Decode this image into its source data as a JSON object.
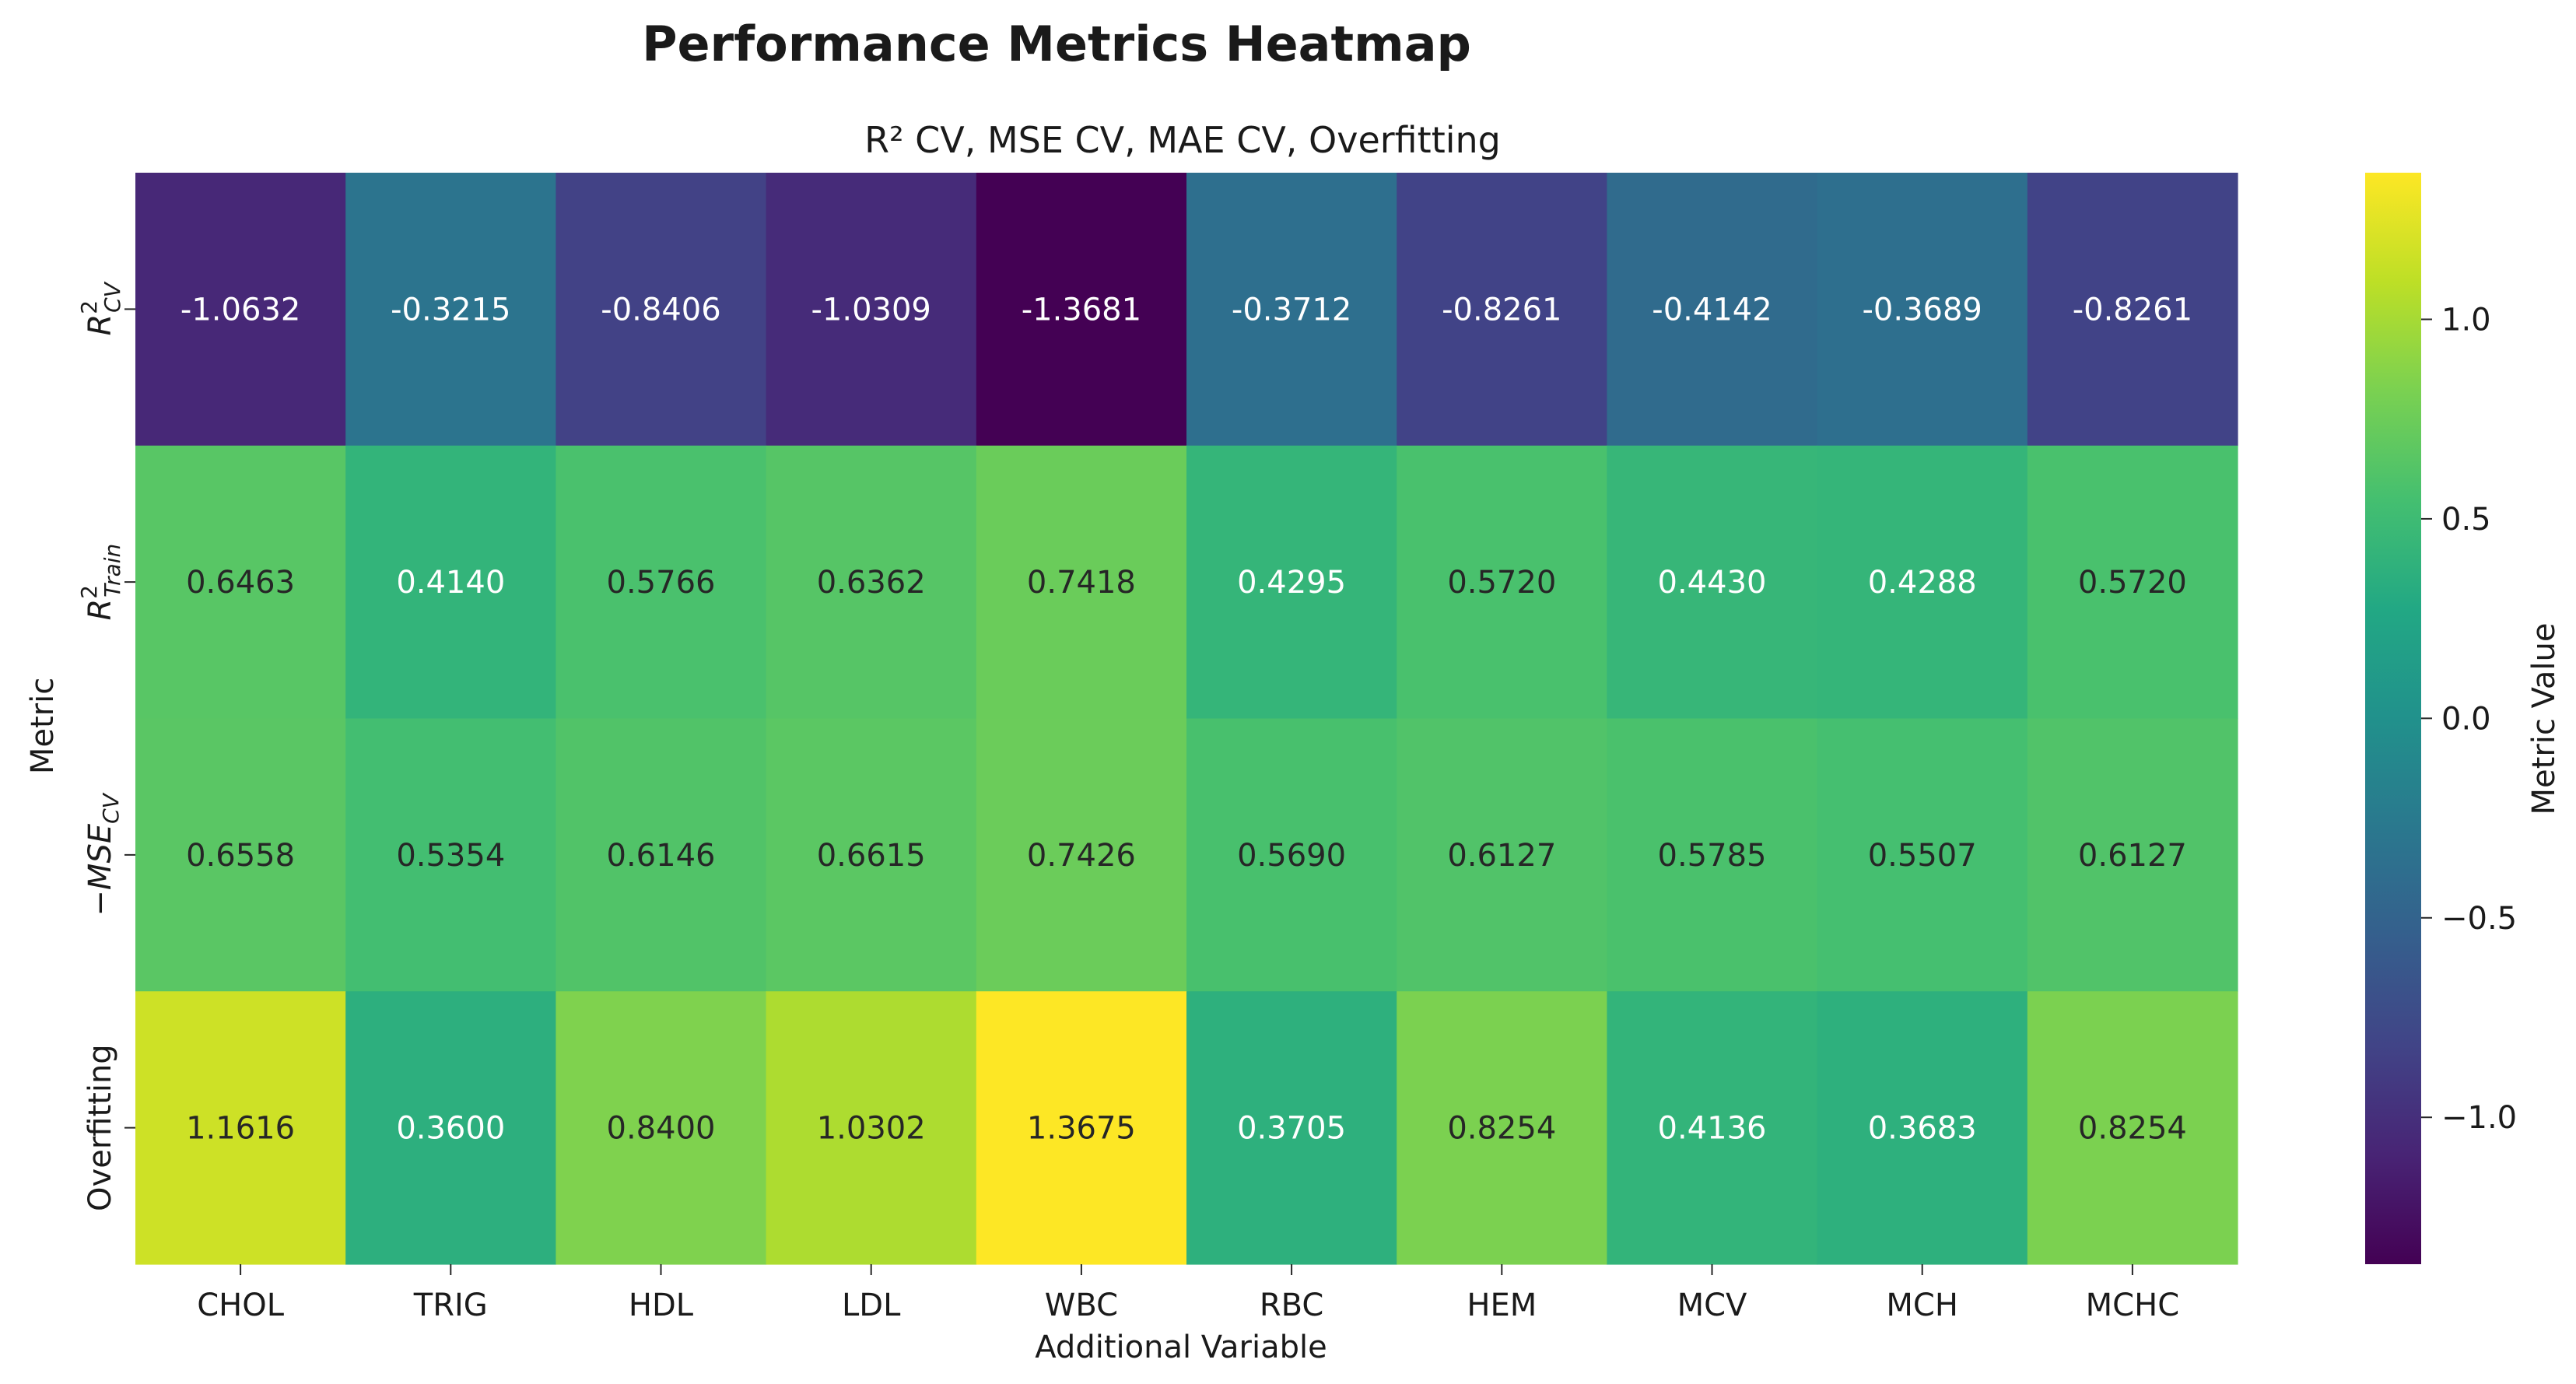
{
  "chart_data": {
    "type": "heatmap",
    "title": "Performance Metrics Heatmap",
    "subtitle": "R² CV, MSE CV, MAE CV, Overfitting",
    "xlabel": "Additional Variable",
    "ylabel": "Metric",
    "x_categories": [
      "CHOL",
      "TRIG",
      "HDL",
      "LDL",
      "WBC",
      "RBC",
      "HEM",
      "MCV",
      "MCH",
      "MCHC"
    ],
    "y_categories": [
      {
        "base": "R",
        "sup": "2",
        "sub": "CV"
      },
      {
        "base": "R",
        "sup": "2",
        "sub": "Train"
      },
      {
        "base": "−MSE",
        "sup": "",
        "sub": "CV"
      },
      {
        "base": "Overfitting",
        "sup": "",
        "sub": ""
      }
    ],
    "values": [
      [
        -1.0632,
        -0.3215,
        -0.8406,
        -1.0309,
        -1.3681,
        -0.3712,
        -0.8261,
        -0.4142,
        -0.3689,
        -0.8261
      ],
      [
        0.6463,
        0.414,
        0.5766,
        0.6362,
        0.7418,
        0.4295,
        0.572,
        0.443,
        0.4288,
        0.572
      ],
      [
        0.6558,
        0.5354,
        0.6146,
        0.6615,
        0.7426,
        0.569,
        0.6127,
        0.5785,
        0.5507,
        0.6127
      ],
      [
        1.1616,
        0.36,
        0.84,
        1.0302,
        1.3675,
        0.3705,
        0.8254,
        0.4136,
        0.3683,
        0.8254
      ]
    ],
    "value_format_decimals": 4,
    "colormap": "viridis",
    "vmin": -1.3681,
    "vmax": 1.3675,
    "colorbar": {
      "label": "Metric Value",
      "ticks": [
        -1.0,
        -0.5,
        0.0,
        0.5,
        1.0
      ],
      "tick_labels": [
        "−1.0",
        "−0.5",
        "0.0",
        "0.5",
        "1.0"
      ]
    }
  }
}
